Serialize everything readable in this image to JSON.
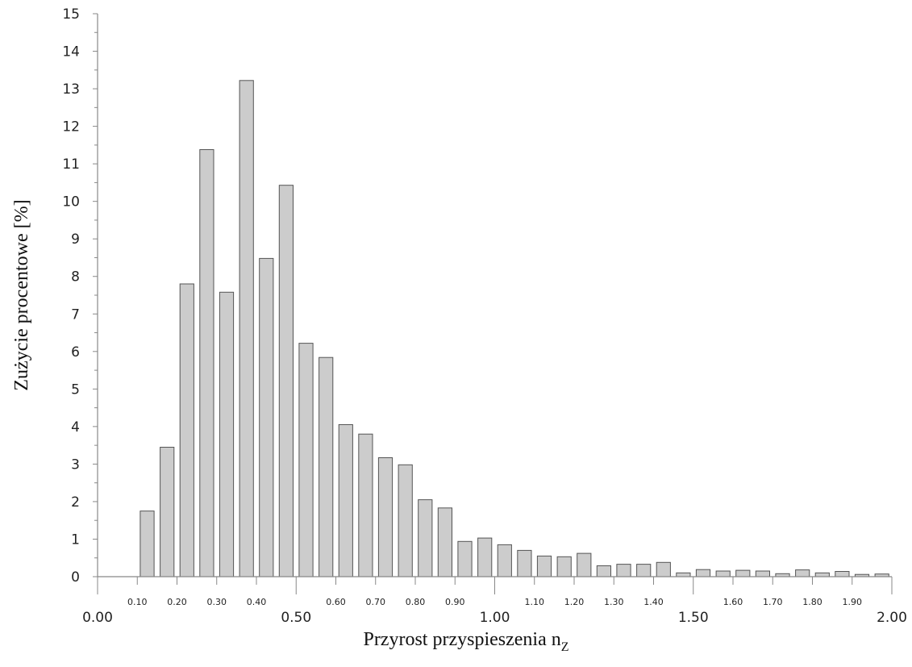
{
  "chart_data": {
    "type": "bar",
    "title": "",
    "xlabel": "Przyrost przyspieszenia n",
    "xlabel_subscript": "Z",
    "ylabel": "Zużycie procentowe [%]",
    "ylim": [
      0,
      15
    ],
    "xlim": [
      0.0,
      2.0
    ],
    "grid": false,
    "colors": {
      "bar_fill": "#cccccc",
      "bar_stroke": "#555555",
      "axis": "#888888"
    },
    "y_ticks": [
      "0",
      "1",
      "2",
      "3",
      "4",
      "5",
      "6",
      "7",
      "8",
      "9",
      "10",
      "11",
      "12",
      "13",
      "14",
      "15"
    ],
    "x_minor_ticks": [
      "0.10",
      "0.20",
      "0.30",
      "0.40",
      "0.60",
      "0.70",
      "0.80",
      "0.90",
      "1.10",
      "1.20",
      "1.30",
      "1.40",
      "1.60",
      "1.70",
      "1.80",
      "1.90"
    ],
    "x_minor_tick_values": [
      0.1,
      0.2,
      0.3,
      0.4,
      0.6,
      0.7,
      0.8,
      0.9,
      1.1,
      1.2,
      1.3,
      1.4,
      1.6,
      1.7,
      1.8,
      1.9
    ],
    "x_major_ticks": [
      "0.00",
      "0.50",
      "1.00",
      "1.50",
      "2.00"
    ],
    "x_major_tick_values": [
      0.0,
      0.5,
      1.0,
      1.5,
      2.0
    ],
    "bar_width": 0.035,
    "x": [
      0.125,
      0.175,
      0.225,
      0.275,
      0.325,
      0.375,
      0.425,
      0.475,
      0.525,
      0.575,
      0.625,
      0.675,
      0.725,
      0.775,
      0.825,
      0.875,
      0.925,
      0.975,
      1.025,
      1.075,
      1.125,
      1.175,
      1.225,
      1.275,
      1.325,
      1.375,
      1.425,
      1.475,
      1.525,
      1.575,
      1.625,
      1.675,
      1.725,
      1.775,
      1.825,
      1.875,
      1.925,
      1.975
    ],
    "values": [
      1.75,
      3.45,
      7.8,
      11.38,
      7.58,
      13.22,
      8.48,
      10.43,
      6.22,
      5.84,
      4.05,
      3.8,
      3.17,
      2.98,
      2.05,
      1.83,
      0.94,
      1.03,
      0.85,
      0.7,
      0.55,
      0.53,
      0.62,
      0.29,
      0.33,
      0.33,
      0.38,
      0.1,
      0.19,
      0.15,
      0.17,
      0.15,
      0.08,
      0.18,
      0.1,
      0.14,
      0.06,
      0.07
    ]
  }
}
